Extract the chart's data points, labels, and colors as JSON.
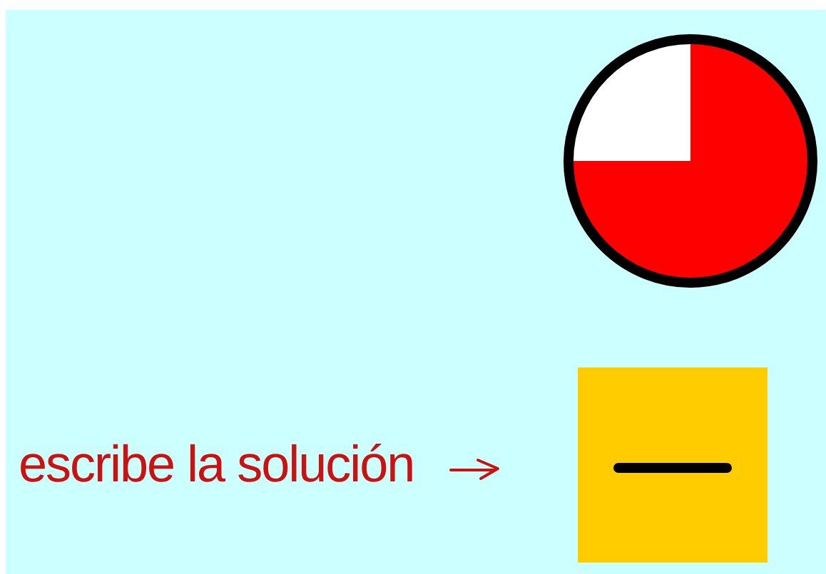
{
  "chart_data": {
    "type": "pie",
    "categories": [
      null,
      null
    ],
    "values": [
      75,
      25
    ],
    "colors": [
      "#ff0000",
      "#ffffff"
    ],
    "annotations": [
      "escribe la solución"
    ]
  }
}
